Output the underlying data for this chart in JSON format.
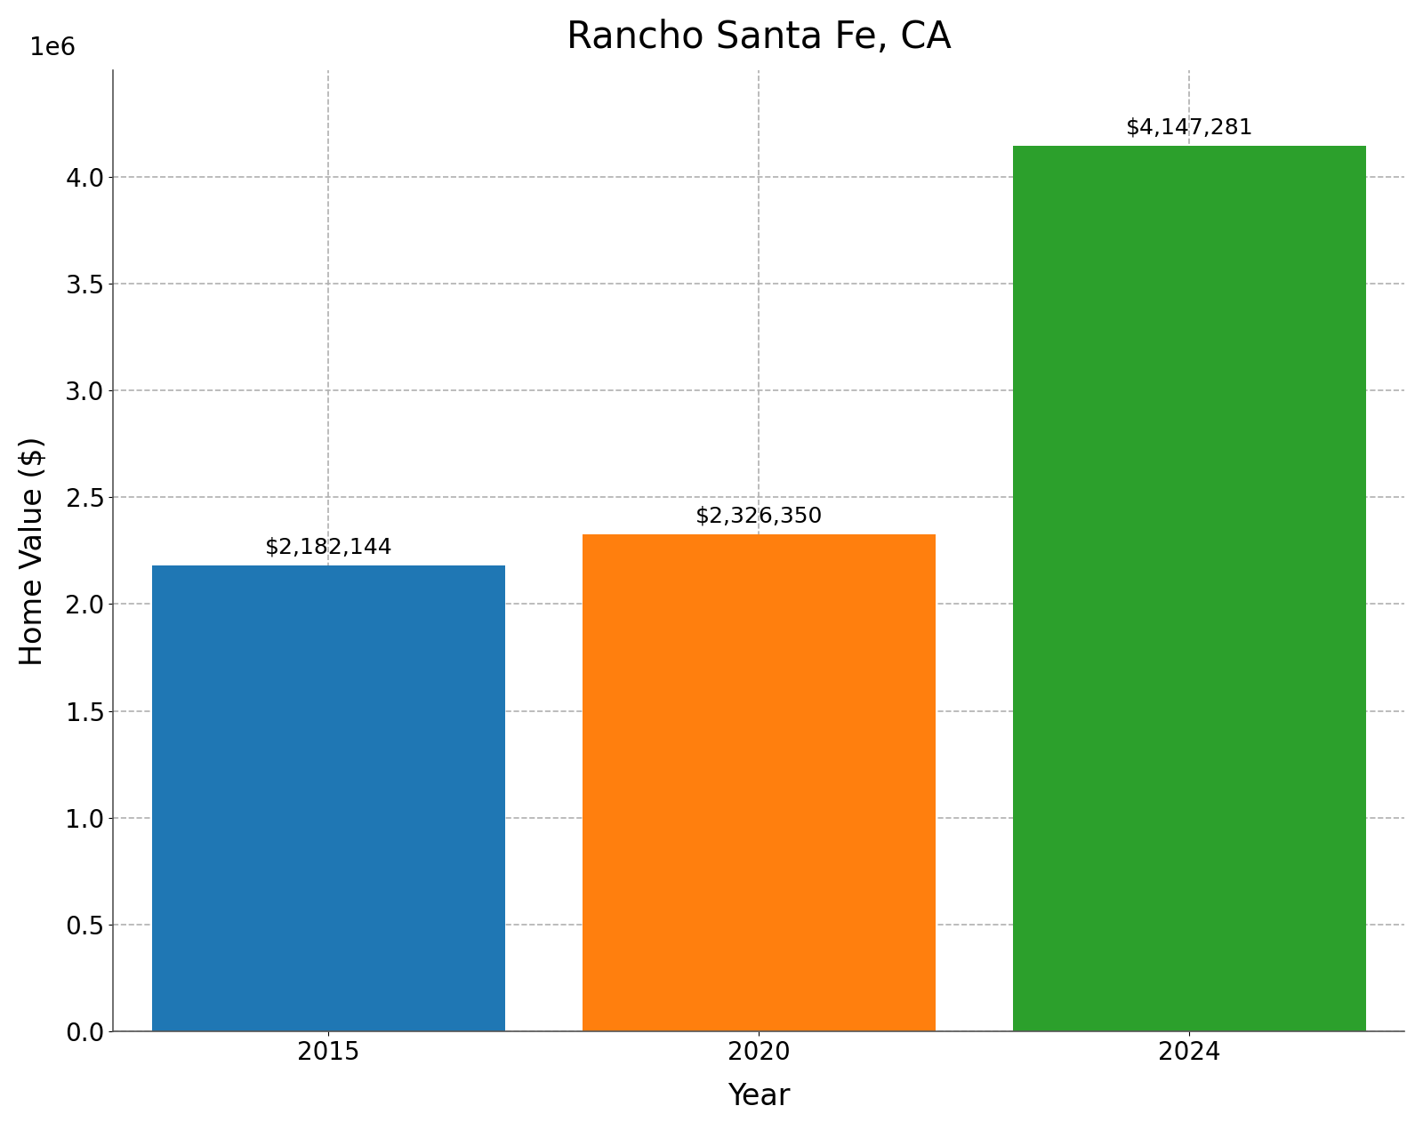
{
  "title": "Rancho Santa Fe, CA",
  "xlabel": "Year",
  "ylabel": "Home Value ($)",
  "categories": [
    "2015",
    "2020",
    "2024"
  ],
  "values": [
    2182144,
    2326350,
    4147281
  ],
  "bar_colors": [
    "#1f77b4",
    "#ff7f0e",
    "#2ca02c"
  ],
  "annotations": [
    "$2,182,144",
    "$2,326,350",
    "$4,147,281"
  ],
  "ylim": [
    0,
    4500000
  ],
  "yticks": [
    0,
    500000,
    1000000,
    1500000,
    2000000,
    2500000,
    3000000,
    3500000,
    4000000
  ],
  "title_fontsize": 30,
  "label_fontsize": 24,
  "tick_fontsize": 20,
  "annotation_fontsize": 18,
  "background_color": "#ffffff",
  "grid_color": "#b0b0b0",
  "bar_width": 0.82
}
